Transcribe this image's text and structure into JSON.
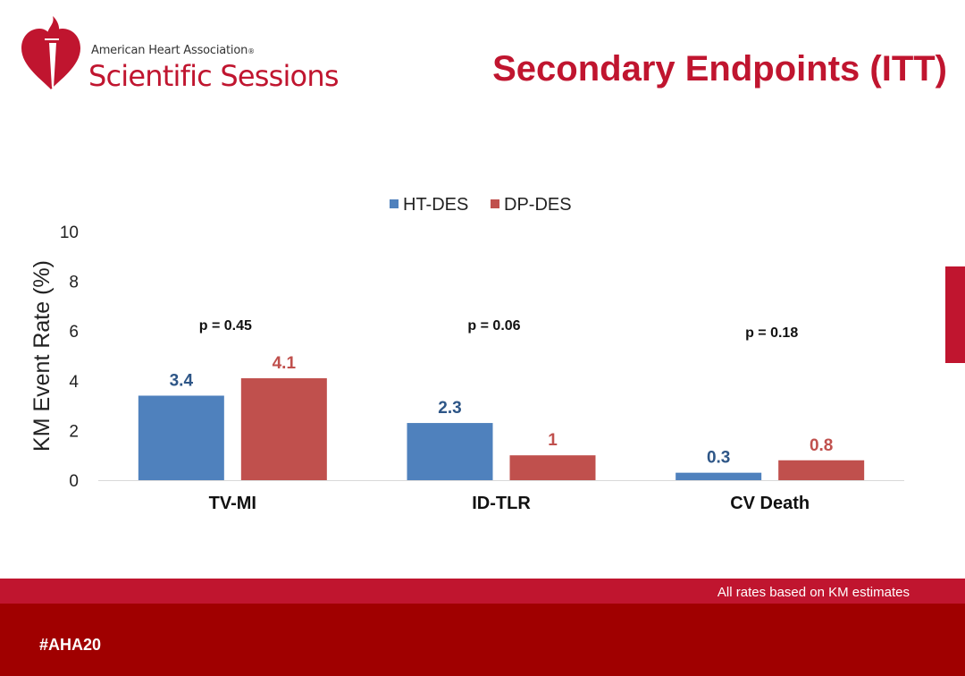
{
  "header": {
    "org": "American Heart Association",
    "org_mark": "®",
    "event": "Scientific Sessions",
    "title": "Secondary Endpoints (ITT)"
  },
  "colors": {
    "brand": "#c0152f",
    "dark_brand": "#a00000",
    "series_blue": "#4f81bd",
    "series_red": "#c0504d",
    "label_blue": "#2e5687",
    "label_red": "#c0504d"
  },
  "chart_data": {
    "type": "bar",
    "categories": [
      "TV-MI",
      "ID-TLR",
      "CV Death"
    ],
    "series": [
      {
        "name": "HT-DES",
        "values": [
          3.4,
          2.3,
          0.3
        ],
        "labels": [
          "3.4",
          "2.3",
          "0.3"
        ]
      },
      {
        "name": "DP-DES",
        "values": [
          4.1,
          1.0,
          0.8
        ],
        "labels": [
          "4.1",
          "1",
          "0.8"
        ]
      }
    ],
    "annotations": [
      "p = 0.45",
      "p = 0.06",
      "p = 0.18"
    ],
    "ylabel": "KM Event Rate (%)",
    "xlabel": "",
    "ylim": [
      0,
      10
    ],
    "yticks": [
      "0",
      "2",
      "4",
      "6",
      "8",
      "10"
    ],
    "legend": "top-center",
    "grid": false
  },
  "footer": {
    "note": "All rates based on KM estimates",
    "hashtag": "#AHA20"
  }
}
